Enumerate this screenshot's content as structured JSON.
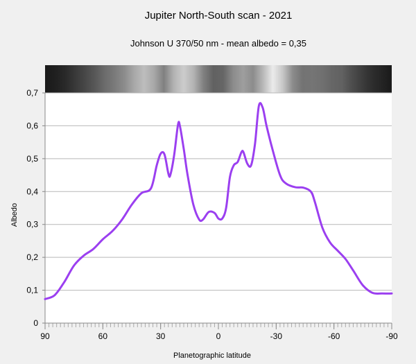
{
  "chart_data": {
    "type": "line",
    "title": "Jupiter North-South scan - 2021",
    "subtitle": "Johnson U 370/50 nm - mean albedo = 0,35",
    "xlabel": "Planetographic latitude",
    "ylabel": "Albedo",
    "xlim": [
      90,
      -90
    ],
    "ylim": [
      0,
      0.7
    ],
    "x_ticks": [
      "90",
      "60",
      "30",
      "0",
      "-30",
      "-60",
      "-90"
    ],
    "y_ticks": [
      "0",
      "0,1",
      "0,2",
      "0,3",
      "0,4",
      "0,5",
      "0,6",
      "0,7"
    ],
    "grid": true,
    "legend": "none",
    "line_color": "#9b3ff0",
    "series": [
      {
        "x": [
          90,
          85,
          80,
          75,
          70,
          65,
          60,
          55,
          50,
          45,
          40,
          35,
          32,
          30,
          28,
          26,
          25,
          23,
          21,
          20,
          18,
          16,
          13,
          10,
          8,
          5,
          2,
          0,
          -2,
          -4,
          -6,
          -8,
          -10,
          -12,
          -13,
          -15,
          -17,
          -19,
          -21,
          -23,
          -25,
          -28,
          -32,
          -35,
          -40,
          -44,
          -48,
          -50,
          -54,
          -58,
          -62,
          -66,
          -70,
          -75,
          -80,
          -85,
          -90
        ],
        "y": [
          0.073,
          0.085,
          0.125,
          0.175,
          0.205,
          0.225,
          0.255,
          0.28,
          0.315,
          0.36,
          0.395,
          0.41,
          0.48,
          0.515,
          0.513,
          0.455,
          0.45,
          0.51,
          0.603,
          0.6,
          0.53,
          0.45,
          0.36,
          0.315,
          0.315,
          0.338,
          0.335,
          0.318,
          0.318,
          0.35,
          0.445,
          0.48,
          0.49,
          0.52,
          0.52,
          0.485,
          0.48,
          0.545,
          0.66,
          0.655,
          0.6,
          0.53,
          0.45,
          0.425,
          0.413,
          0.412,
          0.4,
          0.37,
          0.29,
          0.245,
          0.22,
          0.195,
          0.16,
          0.115,
          0.092,
          0.09,
          0.09
        ]
      }
    ],
    "strip_profile": [
      0.1,
      0.12,
      0.16,
      0.22,
      0.28,
      0.34,
      0.42,
      0.48,
      0.55,
      0.66,
      0.74,
      0.66,
      0.5,
      0.7,
      0.8,
      0.7,
      0.5,
      0.38,
      0.4,
      0.55,
      0.62,
      0.55,
      0.72,
      0.92,
      0.78,
      0.55,
      0.45,
      0.46,
      0.44,
      0.4,
      0.38,
      0.3,
      0.24,
      0.18,
      0.14,
      0.1
    ]
  }
}
